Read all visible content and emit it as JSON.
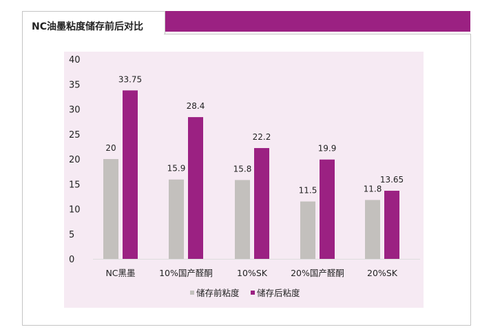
{
  "chart_data": {
    "type": "bar",
    "title": "NC油墨粘度储存前后对比",
    "categories": [
      "NC黑墨",
      "10%国产醛酮",
      "10%SK",
      "20%国产醛酮",
      "20%SK"
    ],
    "series": [
      {
        "name": "储存前粘度",
        "values": [
          20,
          15.9,
          15.8,
          11.5,
          11.8
        ],
        "color": "#c3c0bd"
      },
      {
        "name": "储存后粘度",
        "values": [
          33.75,
          28.4,
          22.2,
          19.9,
          13.65
        ],
        "color": "#9b2182"
      }
    ],
    "yticks": [
      0,
      5,
      10,
      15,
      20,
      25,
      30,
      35,
      40
    ],
    "ylim": [
      0,
      40
    ],
    "grid": false,
    "legend": "bottom",
    "xlabel": "",
    "ylabel": ""
  },
  "colors": {
    "accent": "#9b2182",
    "plot_bg": "#f6eaf3"
  }
}
